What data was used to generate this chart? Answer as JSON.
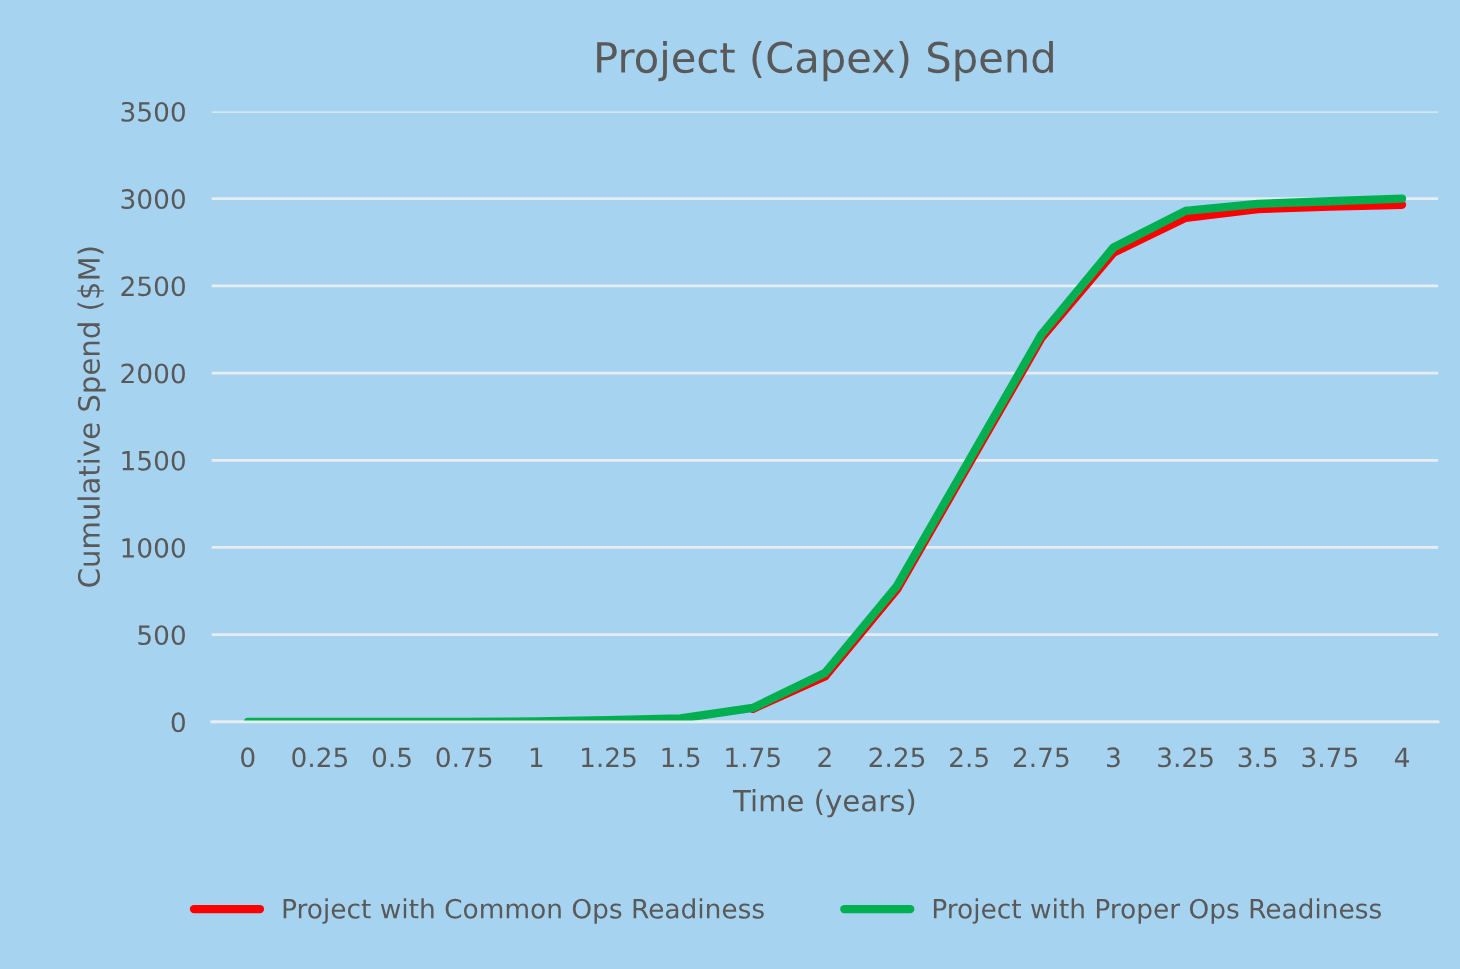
{
  "chart_data": {
    "type": "line",
    "title": "Project (Capex) Spend",
    "xlabel": "Time (years)",
    "ylabel": "Cumulative Spend ($M)",
    "categories": [
      "0",
      "0.25",
      "0.5",
      "0.75",
      "1",
      "1.25",
      "1.5",
      "1.75",
      "2",
      "2.25",
      "2.5",
      "2.75",
      "3",
      "3.25",
      "3.5",
      "3.75",
      "4"
    ],
    "series": [
      {
        "name": "Project with Common Ops Readiness",
        "color": "#ff0000",
        "values": [
          null,
          null,
          null,
          null,
          null,
          null,
          null,
          75,
          260,
          760,
          1480,
          2200,
          2690,
          2890,
          2940,
          2955,
          2965
        ]
      },
      {
        "name": "Project with Proper Ops Readiness",
        "color": "#00b050",
        "values": [
          0,
          0,
          0,
          0,
          3,
          10,
          20,
          80,
          280,
          780,
          1500,
          2220,
          2720,
          2930,
          2970,
          2985,
          3000
        ]
      }
    ],
    "ylim": [
      0,
      3500
    ],
    "yticks": [
      0,
      500,
      1000,
      1500,
      2000,
      2500,
      3000,
      3500
    ],
    "grid": "y",
    "legend": "bottom",
    "marker": "none",
    "line_style": "solid"
  }
}
